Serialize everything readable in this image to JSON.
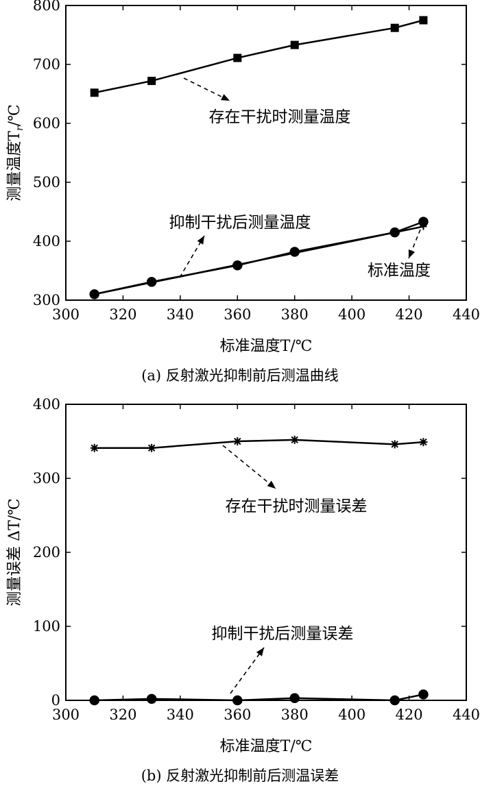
{
  "chart_data": [
    {
      "type": "line",
      "caption": "(a) 反射激光抑制前后测温曲线",
      "xlabel": "标准温度T/℃",
      "ylabel": "测量温度T",
      "ylabel_sub": "r",
      "ylabel_unit": "/℃",
      "xlim": [
        300,
        440
      ],
      "ylim": [
        300,
        800
      ],
      "xticks": [
        300,
        320,
        340,
        360,
        380,
        400,
        420,
        440
      ],
      "yticks": [
        300,
        400,
        500,
        600,
        700,
        800
      ],
      "grid": false,
      "series": [
        {
          "name": "存在干扰时测量温度",
          "marker": "square",
          "x": [
            310,
            330,
            360,
            380,
            415,
            425
          ],
          "y": [
            652,
            672,
            711,
            733,
            762,
            775
          ]
        },
        {
          "name": "抑制干扰后测量温度",
          "marker": "circle-filled",
          "x": [
            310,
            330,
            360,
            380,
            415,
            425
          ],
          "y": [
            310,
            331,
            359,
            382,
            415,
            433
          ]
        },
        {
          "name": "标准温度",
          "marker": "plus",
          "x": [
            310,
            330,
            360,
            380,
            415,
            425
          ],
          "y": [
            310,
            330,
            360,
            380,
            415,
            425
          ]
        }
      ],
      "annotations": [
        {
          "text": "存在干扰时测量温度",
          "series": 0
        },
        {
          "text": "抑制干扰后测量温度",
          "series": 1
        },
        {
          "text": "标准温度",
          "series": 2
        }
      ]
    },
    {
      "type": "line",
      "caption": "(b) 反射激光抑制前后测温误差",
      "xlabel": "标准温度T/℃",
      "ylabel": "测量误差 ΔT/℃",
      "xlim": [
        300,
        440
      ],
      "ylim": [
        0,
        400
      ],
      "xticks": [
        300,
        320,
        340,
        360,
        380,
        400,
        420,
        440
      ],
      "yticks": [
        0,
        100,
        200,
        300,
        400
      ],
      "grid": false,
      "series": [
        {
          "name": "存在干扰时测量误差",
          "marker": "asterisk",
          "x": [
            310,
            330,
            360,
            380,
            415,
            425
          ],
          "y": [
            341,
            341,
            350,
            352,
            346,
            349
          ]
        },
        {
          "name": "抑制干扰后测量误差",
          "marker": "circle-filled",
          "x": [
            310,
            330,
            360,
            380,
            415,
            425
          ],
          "y": [
            0,
            2,
            0,
            3,
            0,
            8
          ]
        }
      ],
      "annotations": [
        {
          "text": "存在干扰时测量误差",
          "series": 0
        },
        {
          "text": "抑制干扰后测量误差",
          "series": 1
        }
      ]
    }
  ]
}
